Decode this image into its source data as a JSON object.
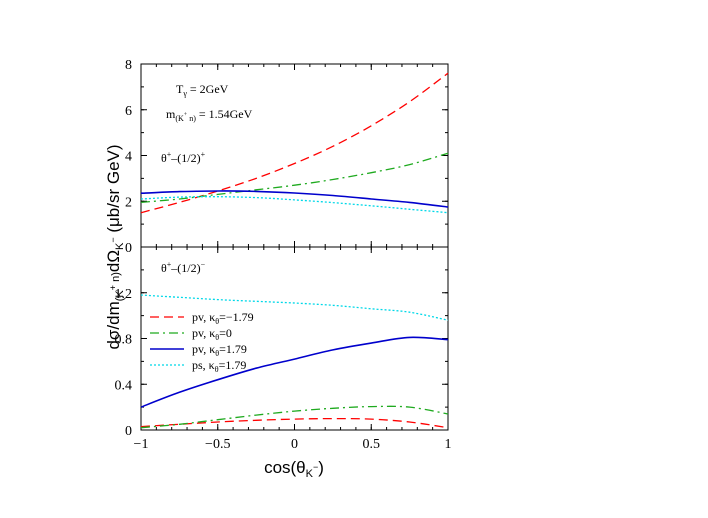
{
  "chart_data": [
    {
      "type": "line",
      "panel": "top",
      "xlim": [
        -1,
        1
      ],
      "ylim": [
        0,
        8
      ],
      "yticks": [
        0,
        2,
        4,
        6,
        8
      ],
      "ytick_labels": [
        "0",
        "2",
        "4",
        "6",
        "8"
      ],
      "grid": false,
      "annotations": {
        "energy": "Tγ = 2GeV",
        "mass": "m(K⁺ n) = 1.54GeV",
        "parity": "θ⁺–(1/2)⁺"
      },
      "x": [
        -1,
        -0.75,
        -0.5,
        -0.25,
        0,
        0.25,
        0.5,
        0.75,
        1
      ],
      "series": [
        {
          "key": "pv_m179",
          "values": [
            1.5,
            1.95,
            2.45,
            3.0,
            3.65,
            4.4,
            5.3,
            6.35,
            7.6
          ]
        },
        {
          "key": "pv_0",
          "values": [
            1.95,
            2.1,
            2.3,
            2.5,
            2.7,
            2.95,
            3.25,
            3.6,
            4.1
          ]
        },
        {
          "key": "pv_p179",
          "values": [
            2.35,
            2.42,
            2.45,
            2.43,
            2.36,
            2.25,
            2.1,
            1.95,
            1.75
          ]
        },
        {
          "key": "ps_p179",
          "values": [
            2.1,
            2.18,
            2.2,
            2.16,
            2.06,
            1.94,
            1.8,
            1.65,
            1.5
          ]
        }
      ]
    },
    {
      "type": "line",
      "panel": "bottom",
      "xlim": [
        -1,
        1
      ],
      "ylim": [
        0,
        1.6
      ],
      "yticks": [
        0,
        0.4,
        0.8,
        1.2
      ],
      "ytick_labels": [
        "0",
        "0.4",
        "0.8",
        "1.2"
      ],
      "grid": false,
      "annotations": {
        "parity": "θ⁺–(1/2)⁻"
      },
      "x": [
        -1,
        -0.75,
        -0.5,
        -0.25,
        0,
        0.25,
        0.5,
        0.75,
        1
      ],
      "series": [
        {
          "key": "pv_m179",
          "values": [
            0.03,
            0.05,
            0.07,
            0.085,
            0.095,
            0.1,
            0.095,
            0.07,
            0.02
          ]
        },
        {
          "key": "pv_0",
          "values": [
            0.02,
            0.05,
            0.09,
            0.13,
            0.165,
            0.19,
            0.205,
            0.2,
            0.14
          ]
        },
        {
          "key": "pv_p179",
          "values": [
            0.2,
            0.33,
            0.44,
            0.54,
            0.62,
            0.7,
            0.76,
            0.81,
            0.79
          ]
        },
        {
          "key": "ps_p179",
          "values": [
            1.18,
            1.16,
            1.14,
            1.125,
            1.11,
            1.09,
            1.06,
            1.03,
            0.96
          ]
        }
      ]
    }
  ],
  "axes": {
    "xticks": [
      -1,
      -0.5,
      0,
      0.5,
      1
    ],
    "xtick_labels": [
      "−1",
      "−0.5",
      "0",
      "0.5",
      "1"
    ],
    "xlabel": "cos(θK⁻)",
    "ylabel": "dσ/dm(K⁺ n)dΩK⁻ (μb/sr GeV)"
  },
  "legend": {
    "placement": "bottom-left of lower panel",
    "entries": [
      {
        "key": "pv_m179",
        "label": "pv, κθ=−1.79",
        "color": "#ff0000",
        "dash": "dashed"
      },
      {
        "key": "pv_0",
        "label": "pv, κθ=0",
        "color": "#1faa1f",
        "dash": "dash-dot"
      },
      {
        "key": "pv_p179",
        "label": "pv, κθ=1.79",
        "color": "#0000cc",
        "dash": "solid"
      },
      {
        "key": "ps_p179",
        "label": "ps, κθ=1.79",
        "color": "#00d8e8",
        "dash": "dotted"
      }
    ]
  }
}
